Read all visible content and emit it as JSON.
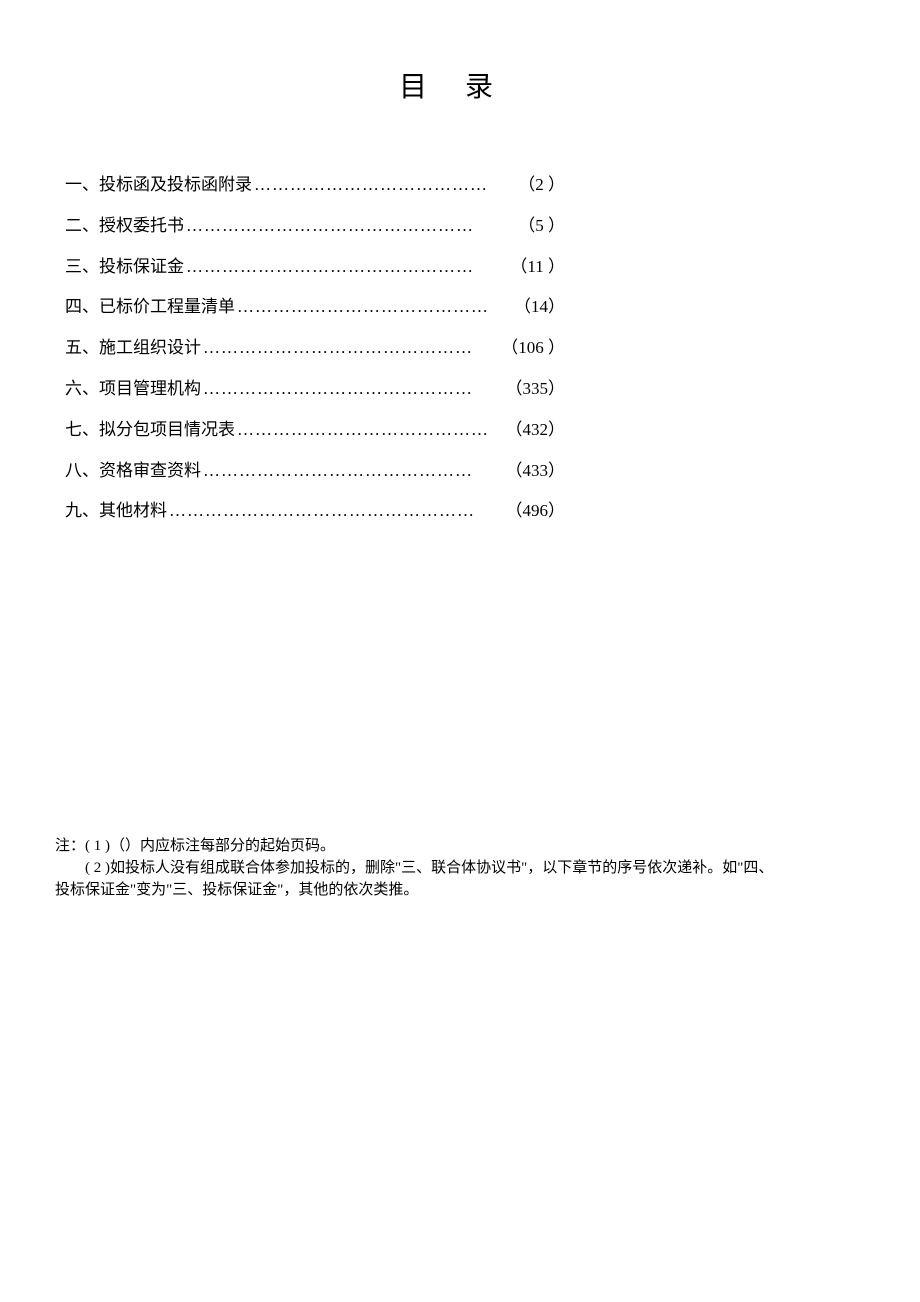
{
  "title": "目录",
  "text_color": "#000000",
  "background_color": "#ffffff",
  "title_fontsize": 28,
  "body_fontsize": 17,
  "note_fontsize": 15,
  "font_family": "SimSun",
  "toc": {
    "entries": [
      {
        "label": "一、投标函及投标函附录",
        "page": "（2 ）"
      },
      {
        "label": "二、授权委托书",
        "page": "（5 ）"
      },
      {
        "label": "三、投标保证金",
        "page": "（11 ）"
      },
      {
        "label": "四、已标价工程量清单",
        "page": "（14）"
      },
      {
        "label": "五、施工组织设计",
        "page": "（106 ）"
      },
      {
        "label": "六、项目管理机构",
        "page": "（335）"
      },
      {
        "label": "七、拟分包项目情况表",
        "page": "（432）"
      },
      {
        "label": "八、资格审查资料",
        "page": "（433）"
      },
      {
        "label": "九、其他材料",
        "page": "（496）"
      }
    ]
  },
  "notes": {
    "line1": "注：( 1 )（）内应标注每部分的起始页码。",
    "line2": "( 2 )如投标人没有组成联合体参加投标的，删除\"三、联合体协议书\"，以下章节的序号依次递补。如\"四、",
    "line3": "投标保证金\"变为\"三、投标保证金\"，其他的依次类推。"
  }
}
